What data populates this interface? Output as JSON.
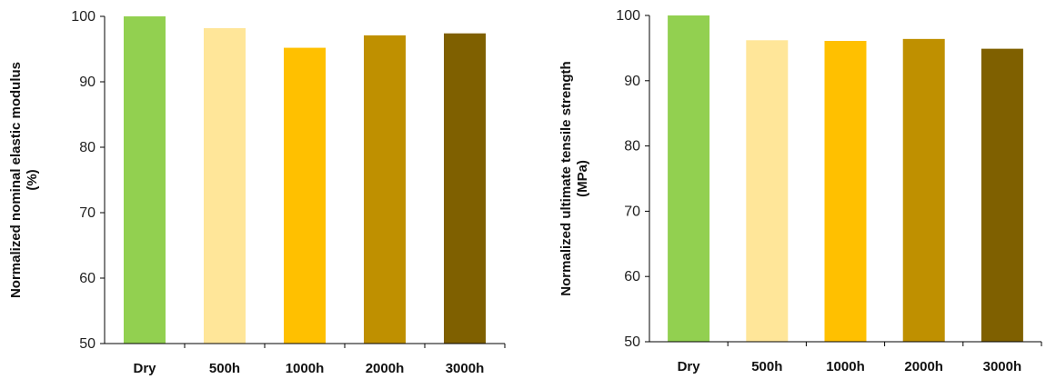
{
  "chart_data": [
    {
      "type": "bar",
      "categories": [
        "Dry",
        "500h",
        "1000h",
        "2000h",
        "3000h"
      ],
      "values": [
        100,
        98.2,
        95.2,
        97.1,
        97.4
      ],
      "ylabel": [
        "Normalized nominal elastic modulus",
        "(%)"
      ],
      "xlabel": "",
      "ylim": [
        50,
        100
      ],
      "yticks": [
        50,
        60,
        70,
        80,
        90,
        100
      ],
      "grid": false,
      "colors": [
        "#92D050",
        "#FFE699",
        "#FFC000",
        "#BF9000",
        "#7F6000"
      ]
    },
    {
      "type": "bar",
      "categories": [
        "Dry",
        "500h",
        "1000h",
        "2000h",
        "3000h"
      ],
      "values": [
        100,
        96.2,
        96.1,
        96.4,
        94.9
      ],
      "ylabel": [
        "Normalized ultimate tensile strength",
        "(MPa)"
      ],
      "xlabel": "",
      "ylim": [
        50,
        100
      ],
      "yticks": [
        50,
        60,
        70,
        80,
        90,
        100
      ],
      "grid": false,
      "colors": [
        "#92D050",
        "#FFE699",
        "#FFC000",
        "#BF9000",
        "#7F6000"
      ]
    }
  ]
}
